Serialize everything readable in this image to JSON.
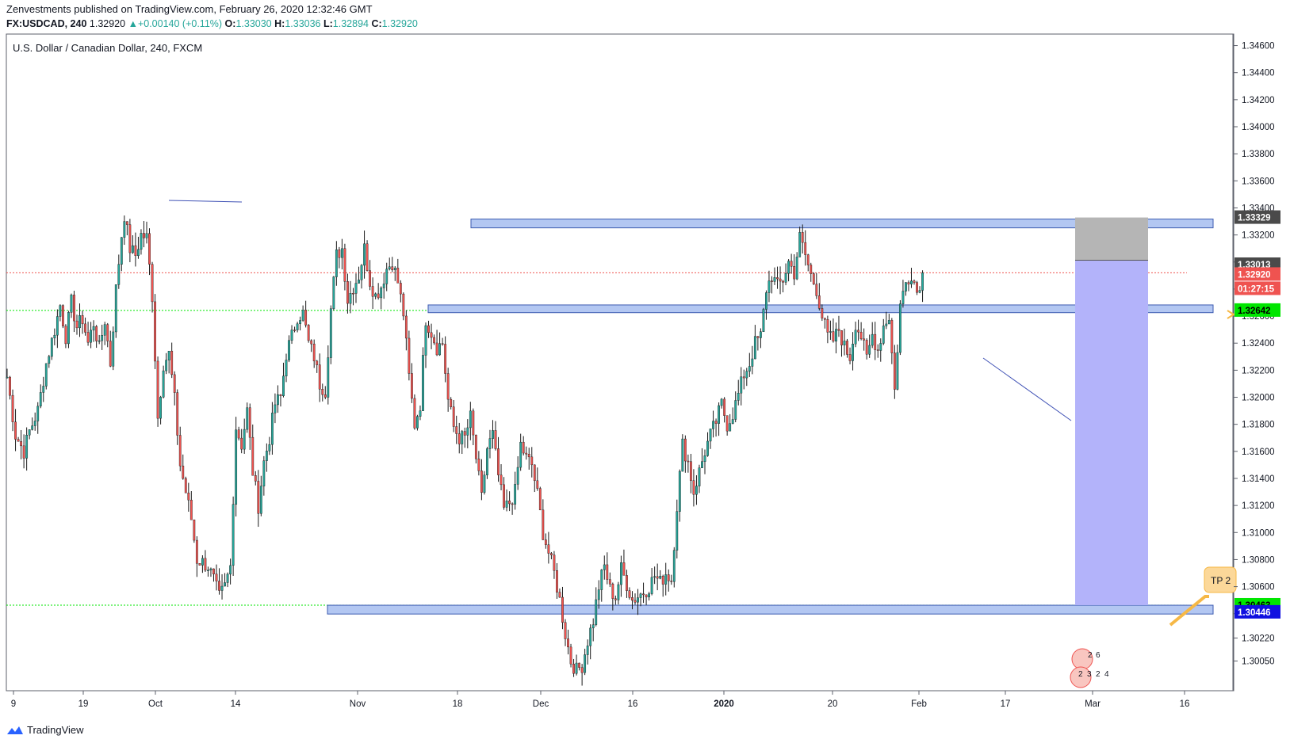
{
  "header": {
    "publisher_line": "Zenvestments published on TradingView.com, February 26, 2020 12:32:46 GMT",
    "publisher": "Zenvestments",
    "symbol": "FX:USDCAD, 240",
    "last": "1.32920",
    "change": "+0.00140 (+0.11%)",
    "o_label": "O:",
    "o": "1.33030",
    "h_label": "H:",
    "h": "1.33036",
    "l_label": "L:",
    "l": "1.32894",
    "c_label": "C:",
    "c": "1.32920"
  },
  "chart_title": "U.S. Dollar / Canadian Dollar, 240, FXCM",
  "footer": {
    "brand": "TradingView"
  },
  "colors": {
    "up": "#26a69a",
    "down": "#ef5350",
    "zone_fill": "#b3c7f2",
    "zone_stroke": "#3c5bb0",
    "target_fill": "#b3b3fa",
    "stop_fill": "#b5b5b5",
    "last_price": "#ef5350",
    "green_level": "#00e600"
  },
  "chart_data": {
    "type": "candlestick",
    "title": "U.S. Dollar / Canadian Dollar, 240, FXCM",
    "x_ticks": [
      "9",
      "19",
      "Oct",
      "14",
      "Nov",
      "18",
      "Dec",
      "16",
      "2020",
      "20",
      "Feb",
      "17",
      "Mar",
      "16"
    ],
    "y_ticks": [
      "1.34600",
      "1.34400",
      "1.34200",
      "1.34000",
      "1.33800",
      "1.33600",
      "1.33400",
      "1.33200",
      "1.33000",
      "1.32800",
      "1.32600",
      "1.32400",
      "1.32200",
      "1.32000",
      "1.31800",
      "1.31600",
      "1.31400",
      "1.31200",
      "1.31000",
      "1.30800",
      "1.30600",
      "1.30400",
      "1.30220",
      "1.30050"
    ],
    "y_range": [
      1.3,
      1.347
    ],
    "close_path_anchors": [
      [
        0,
        1.3215
      ],
      [
        3,
        1.3172
      ],
      [
        6,
        1.316
      ],
      [
        8,
        1.3175
      ],
      [
        11,
        1.319
      ],
      [
        14,
        1.3225
      ],
      [
        17,
        1.325
      ],
      [
        19,
        1.3268
      ],
      [
        21,
        1.3245
      ],
      [
        23,
        1.327
      ],
      [
        25,
        1.3252
      ],
      [
        27,
        1.3258
      ],
      [
        29,
        1.324
      ],
      [
        31,
        1.3255
      ],
      [
        33,
        1.3236
      ],
      [
        35,
        1.3257
      ],
      [
        37,
        1.3225
      ],
      [
        39,
        1.328
      ],
      [
        41,
        1.332
      ],
      [
        42,
        1.3335
      ],
      [
        44,
        1.331
      ],
      [
        46,
        1.3305
      ],
      [
        48,
        1.332
      ],
      [
        50,
        1.3318
      ],
      [
        52,
        1.3275
      ],
      [
        54,
        1.3185
      ],
      [
        56,
        1.3225
      ],
      [
        58,
        1.3232
      ],
      [
        60,
        1.3198
      ],
      [
        62,
        1.315
      ],
      [
        64,
        1.313
      ],
      [
        66,
        1.311
      ],
      [
        68,
        1.308
      ],
      [
        70,
        1.3078
      ],
      [
        72,
        1.3075
      ],
      [
        74,
        1.3065
      ],
      [
        76,
        1.3052
      ],
      [
        78,
        1.306
      ],
      [
        80,
        1.3075
      ],
      [
        82,
        1.3178
      ],
      [
        84,
        1.3165
      ],
      [
        86,
        1.319
      ],
      [
        88,
        1.3145
      ],
      [
        90,
        1.312
      ],
      [
        92,
        1.3152
      ],
      [
        94,
        1.317
      ],
      [
        96,
        1.3195
      ],
      [
        98,
        1.32
      ],
      [
        100,
        1.3232
      ],
      [
        102,
        1.3245
      ],
      [
        104,
        1.326
      ],
      [
        106,
        1.3262
      ],
      [
        108,
        1.324
      ],
      [
        110,
        1.323
      ],
      [
        112,
        1.321
      ],
      [
        114,
        1.3205
      ],
      [
        116,
        1.3265
      ],
      [
        118,
        1.3305
      ],
      [
        120,
        1.331
      ],
      [
        122,
        1.3272
      ],
      [
        124,
        1.3282
      ],
      [
        126,
        1.329
      ],
      [
        128,
        1.331
      ],
      [
        130,
        1.3286
      ],
      [
        132,
        1.3275
      ],
      [
        134,
        1.3282
      ],
      [
        136,
        1.3295
      ],
      [
        138,
        1.33
      ],
      [
        140,
        1.3285
      ],
      [
        142,
        1.3262
      ],
      [
        144,
        1.3215
      ],
      [
        146,
        1.318
      ],
      [
        148,
        1.3195
      ],
      [
        150,
        1.3258
      ],
      [
        152,
        1.3248
      ],
      [
        154,
        1.3237
      ],
      [
        156,
        1.324
      ],
      [
        158,
        1.3198
      ],
      [
        160,
        1.3178
      ],
      [
        162,
        1.317
      ],
      [
        164,
        1.317
      ],
      [
        166,
        1.3185
      ],
      [
        168,
        1.3155
      ],
      [
        170,
        1.3125
      ],
      [
        172,
        1.3162
      ],
      [
        174,
        1.3172
      ],
      [
        176,
        1.3142
      ],
      [
        178,
        1.3117
      ],
      [
        180,
        1.3122
      ],
      [
        182,
        1.313
      ],
      [
        184,
        1.3165
      ],
      [
        186,
        1.3155
      ],
      [
        188,
        1.315
      ],
      [
        190,
        1.3128
      ],
      [
        192,
        1.31
      ],
      [
        194,
        1.3085
      ],
      [
        196,
        1.307
      ],
      [
        198,
        1.305
      ],
      [
        200,
        1.3025
      ],
      [
        202,
        1.3005
      ],
      [
        204,
        1.2998
      ],
      [
        206,
        1.3002
      ],
      [
        208,
        1.302
      ],
      [
        210,
        1.3035
      ],
      [
        212,
        1.306
      ],
      [
        214,
        1.3075
      ],
      [
        216,
        1.3058
      ],
      [
        218,
        1.3052
      ],
      [
        220,
        1.3073
      ],
      [
        222,
        1.3062
      ],
      [
        224,
        1.305
      ],
      [
        226,
        1.3053
      ],
      [
        228,
        1.3056
      ],
      [
        230,
        1.306
      ],
      [
        232,
        1.3068
      ],
      [
        234,
        1.3063
      ],
      [
        236,
        1.307
      ],
      [
        238,
        1.3065
      ],
      [
        240,
        1.312
      ],
      [
        242,
        1.3165
      ],
      [
        244,
        1.3152
      ],
      [
        246,
        1.313
      ],
      [
        248,
        1.3145
      ],
      [
        250,
        1.316
      ],
      [
        252,
        1.3172
      ],
      [
        254,
        1.3182
      ],
      [
        256,
        1.3195
      ],
      [
        258,
        1.318
      ],
      [
        260,
        1.3188
      ],
      [
        262,
        1.3202
      ],
      [
        264,
        1.3217
      ],
      [
        266,
        1.3225
      ],
      [
        268,
        1.324
      ],
      [
        270,
        1.3245
      ],
      [
        272,
        1.328
      ],
      [
        274,
        1.329
      ],
      [
        276,
        1.3282
      ],
      [
        278,
        1.3287
      ],
      [
        280,
        1.33
      ],
      [
        282,
        1.3292
      ],
      [
        284,
        1.3318
      ],
      [
        286,
        1.3305
      ],
      [
        288,
        1.329
      ],
      [
        290,
        1.328
      ],
      [
        292,
        1.326
      ],
      [
        294,
        1.3245
      ],
      [
        296,
        1.3242
      ],
      [
        298,
        1.325
      ],
      [
        300,
        1.3237
      ],
      [
        302,
        1.323
      ],
      [
        304,
        1.3255
      ],
      [
        306,
        1.3245
      ],
      [
        308,
        1.3228
      ],
      [
        310,
        1.3246
      ],
      [
        312,
        1.3235
      ],
      [
        314,
        1.3253
      ],
      [
        316,
        1.326
      ],
      [
        318,
        1.3205
      ],
      [
        320,
        1.3268
      ],
      [
        322,
        1.3285
      ],
      [
        324,
        1.3292
      ],
      [
        326,
        1.3278
      ],
      [
        328,
        1.3292
      ]
    ],
    "resistance_zone": [
      1.3327,
      1.333
    ],
    "mid_zone": [
      1.32643,
      1.32665
    ],
    "support_zone": [
      1.30415,
      1.30445
    ],
    "long_position": {
      "entry": 1.33013,
      "stop": 1.33329,
      "target": 1.30463
    },
    "price_labels": [
      {
        "value": 1.33329,
        "text": "1.33329",
        "bg": "#4a4a4a",
        "fg": "#ffffff"
      },
      {
        "value": 1.33013,
        "text": "1.33013",
        "bg": "#4a4a4a",
        "fg": "#ffffff"
      },
      {
        "value": 1.3292,
        "text": "1.32920",
        "bg": "#ef5350",
        "fg": "#ffffff"
      },
      {
        "value": 1.32642,
        "text": "1.32642",
        "bg": "#00e600",
        "fg": "#000000"
      },
      {
        "value": 1.30463,
        "text": "1.30463",
        "bg": "#00e600",
        "fg": "#000000"
      },
      {
        "value": 1.30446,
        "text": "1.30446",
        "bg": "#1010e0",
        "fg": "#ffffff"
      }
    ],
    "countdown": "01:27:15",
    "note_label": "TP 2",
    "badge_numbers": [
      "2",
      "6",
      "2",
      "3",
      "2",
      "4"
    ]
  }
}
